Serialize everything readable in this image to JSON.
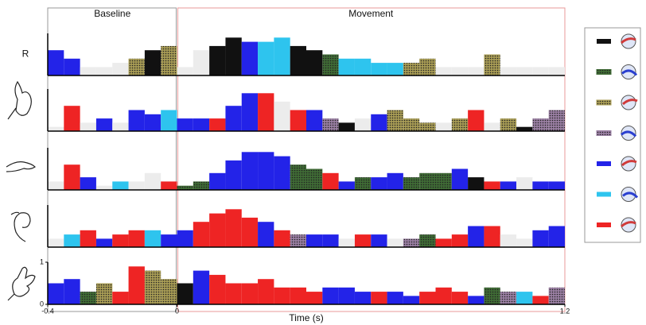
{
  "chart_data": {
    "type": "bar",
    "xlabel": "Time (s)",
    "xlim": [
      -0.4,
      1.2
    ],
    "xticks": [
      -0.4,
      0,
      1.2
    ],
    "ylim": [
      0,
      1
    ],
    "yticks": [
      0,
      1
    ],
    "periods": [
      {
        "label": "Baseline",
        "range": [
          -0.4,
          0
        ]
      },
      {
        "label": "Movement",
        "range": [
          0,
          1.2
        ]
      }
    ],
    "bins": [
      -0.4,
      -0.35,
      -0.3,
      -0.25,
      -0.2,
      -0.15,
      -0.1,
      -0.05,
      0,
      0.05,
      0.1,
      0.15,
      0.2,
      0.25,
      0.3,
      0.35,
      0.4,
      0.45,
      0.5,
      0.55,
      0.6,
      0.65,
      0.7,
      0.75,
      0.8,
      0.85,
      0.9,
      0.95,
      1,
      1.05,
      1.1,
      1.15,
      1.2
    ],
    "states": [
      {
        "color": "#111111",
        "pattern": "solid"
      },
      {
        "color": "#3f6b35",
        "pattern": "dotted"
      },
      {
        "color": "#a89c55",
        "pattern": "dotted"
      },
      {
        "color": "#9a7fa3",
        "pattern": "dotted"
      },
      {
        "color": "#2323e8",
        "pattern": "solid"
      },
      {
        "color": "#2ec4ee",
        "pattern": "solid"
      },
      {
        "color": "#ee2424",
        "pattern": "solid"
      }
    ],
    "rows": [
      {
        "label": "R",
        "values": [
          0.6,
          0.4,
          0.2,
          0.2,
          0.3,
          0.4,
          0.6,
          0.7,
          0.2,
          0.6,
          0.7,
          0.9,
          0.8,
          0.8,
          0.9,
          0.7,
          0.6,
          0.5,
          0.4,
          0.4,
          0.3,
          0.3,
          0.3,
          0.4,
          0.2,
          0.2,
          0.2,
          0.5,
          0.2,
          0.2,
          0.2,
          0.2
        ],
        "states": [
          4,
          4,
          null,
          null,
          null,
          2,
          0,
          2,
          null,
          null,
          0,
          0,
          4,
          5,
          5,
          0,
          0,
          1,
          5,
          5,
          5,
          5,
          2,
          2,
          null,
          null,
          null,
          2,
          null,
          null,
          null,
          null
        ]
      },
      {
        "values": [
          0.1,
          0.6,
          0.2,
          0.3,
          0.2,
          0.5,
          0.4,
          0.5,
          0.3,
          0.3,
          0.3,
          0.6,
          0.9,
          0.9,
          0.7,
          0.5,
          0.5,
          0.3,
          0.2,
          0.3,
          0.4,
          0.5,
          0.3,
          0.2,
          0.2,
          0.3,
          0.5,
          0.2,
          0.3,
          0.1,
          0.3,
          0.5
        ],
        "states": [
          null,
          6,
          null,
          4,
          null,
          4,
          4,
          5,
          4,
          4,
          6,
          4,
          4,
          6,
          null,
          6,
          4,
          3,
          0,
          null,
          4,
          2,
          2,
          2,
          null,
          2,
          6,
          null,
          2,
          0,
          3,
          3
        ]
      },
      {
        "values": [
          0.2,
          0.6,
          0.3,
          0.1,
          0.2,
          0.2,
          0.4,
          0.2,
          0.1,
          0.2,
          0.4,
          0.7,
          0.9,
          0.9,
          0.8,
          0.6,
          0.5,
          0.4,
          0.2,
          0.3,
          0.3,
          0.4,
          0.3,
          0.4,
          0.4,
          0.5,
          0.3,
          0.2,
          0.2,
          0.3,
          0.2,
          0.2
        ],
        "states": [
          null,
          6,
          4,
          null,
          5,
          null,
          null,
          6,
          1,
          1,
          4,
          4,
          4,
          4,
          4,
          1,
          1,
          6,
          4,
          1,
          4,
          4,
          1,
          1,
          1,
          4,
          0,
          6,
          4,
          null,
          4,
          4
        ]
      },
      {
        "values": [
          0.2,
          0.3,
          0.4,
          0.2,
          0.3,
          0.4,
          0.4,
          0.3,
          0.4,
          0.6,
          0.8,
          0.9,
          0.7,
          0.6,
          0.4,
          0.3,
          0.3,
          0.3,
          0.2,
          0.3,
          0.3,
          0.2,
          0.2,
          0.3,
          0.2,
          0.3,
          0.5,
          0.5,
          0.3,
          0.2,
          0.4,
          0.5
        ],
        "states": [
          null,
          5,
          6,
          4,
          6,
          6,
          5,
          4,
          4,
          6,
          6,
          6,
          6,
          4,
          6,
          3,
          4,
          4,
          null,
          6,
          4,
          null,
          3,
          1,
          6,
          6,
          4,
          6,
          null,
          null,
          4,
          4
        ]
      },
      {
        "values": [
          0.5,
          0.6,
          0.3,
          0.5,
          0.3,
          0.9,
          0.8,
          0.6,
          0.5,
          0.8,
          0.7,
          0.5,
          0.5,
          0.6,
          0.4,
          0.4,
          0.3,
          0.4,
          0.4,
          0.3,
          0.3,
          0.3,
          0.2,
          0.3,
          0.4,
          0.3,
          0.2,
          0.4,
          0.3,
          0.3,
          0.2,
          0.4
        ],
        "states": [
          4,
          4,
          1,
          2,
          6,
          6,
          2,
          2,
          0,
          4,
          6,
          6,
          6,
          6,
          6,
          6,
          6,
          4,
          4,
          4,
          6,
          4,
          4,
          6,
          6,
          6,
          4,
          1,
          3,
          5,
          6,
          3
        ]
      }
    ]
  }
}
